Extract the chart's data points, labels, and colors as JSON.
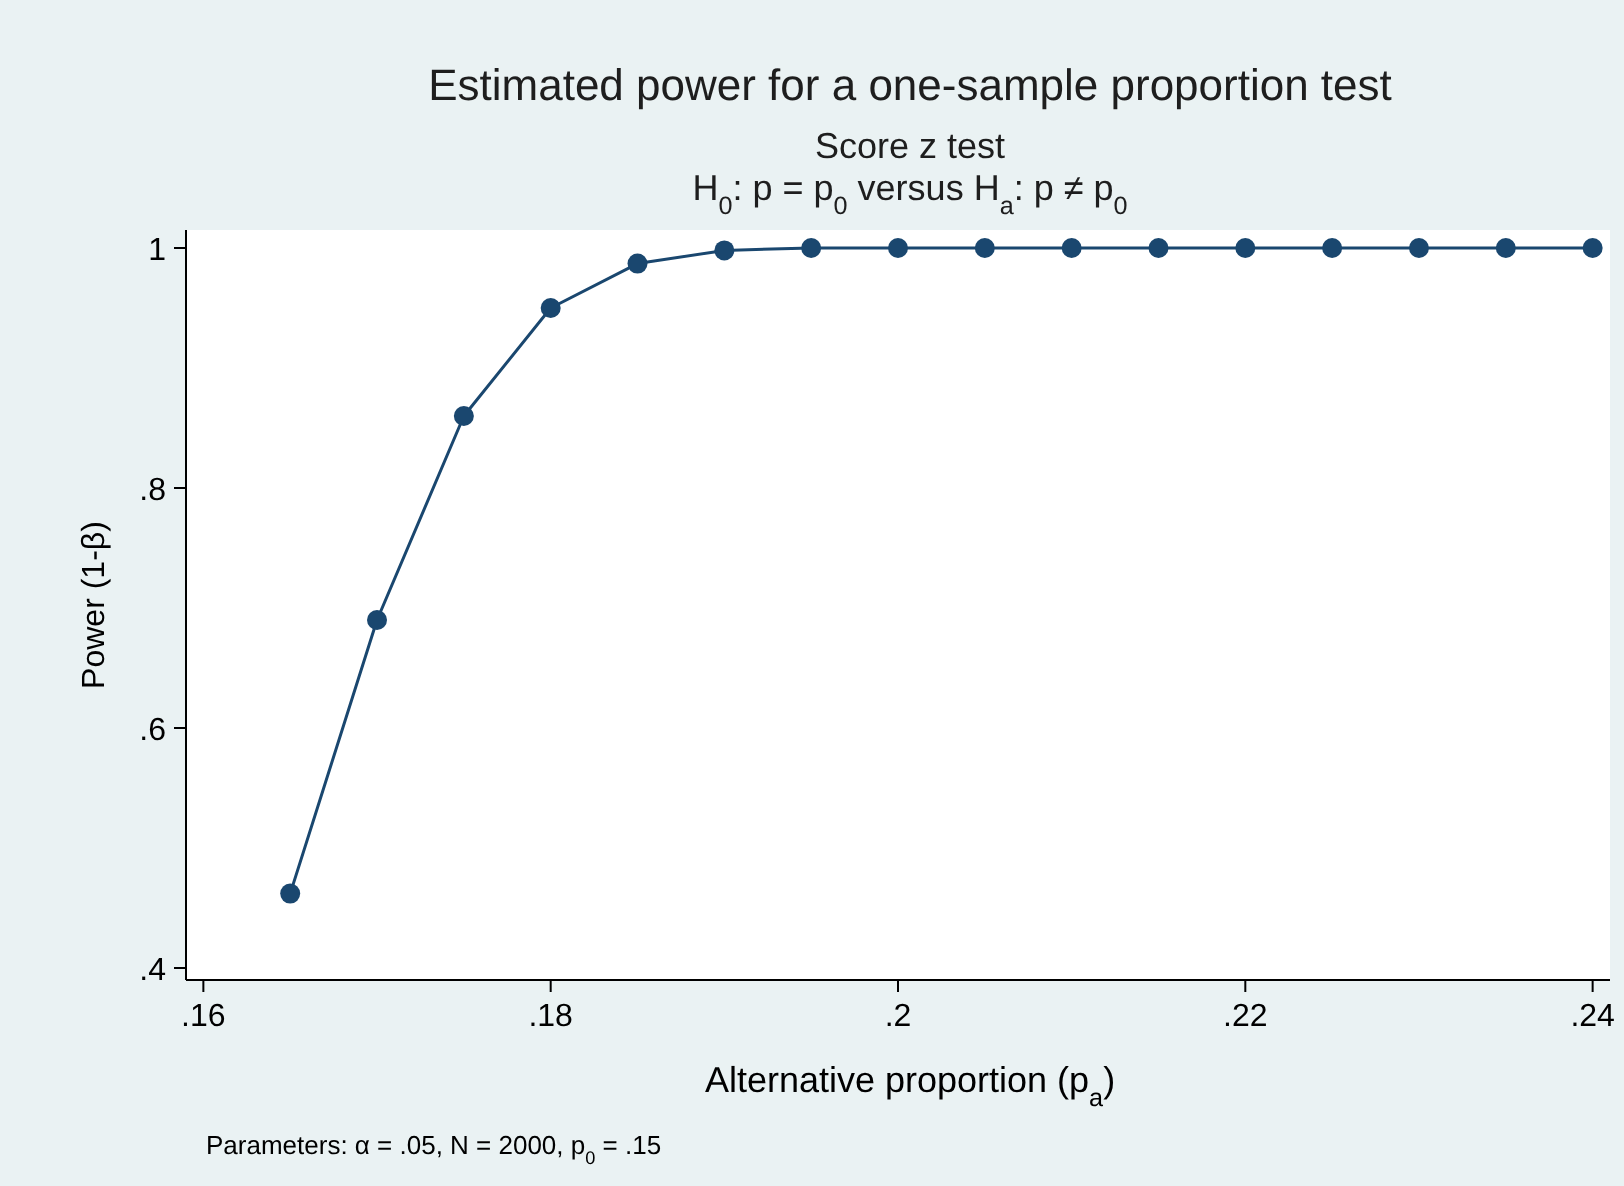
{
  "chart_data": {
    "type": "line",
    "title": "Estimated power for a one-sample proportion test",
    "subtitle": "Score z test\nH$_{0}$: p = p$_{0}$  versus  H$_{a}$: p ≠ p$_{0}$",
    "xlabel": "Alternative proportion (p$_{a}$)",
    "ylabel": "Power (1-β)",
    "annotations": [
      "Parameters: α = .05, N = 2000, p$_{0}$ = .15"
    ],
    "x": [
      0.165,
      0.17,
      0.175,
      0.18,
      0.185,
      0.19,
      0.195,
      0.2,
      0.205,
      0.21,
      0.215,
      0.22,
      0.225,
      0.23,
      0.235,
      0.24
    ],
    "series": [
      {
        "color": "#1a476f",
        "values": [
          0.462,
          0.69,
          0.86,
          0.95,
          0.987,
          0.998,
          1,
          1,
          1,
          1,
          1,
          1,
          1,
          1,
          1,
          1
        ]
      }
    ],
    "xlim": [
      0.159,
      0.241
    ],
    "ylim": [
      0.39,
      1.015
    ],
    "xticks": [
      {
        "value": 0.16,
        "label": ".16"
      },
      {
        "value": 0.18,
        "label": ".18"
      },
      {
        "value": 0.2,
        "label": ".2"
      },
      {
        "value": 0.22,
        "label": ".22"
      },
      {
        "value": 0.24,
        "label": ".24"
      }
    ],
    "yticks": [
      {
        "value": 0.4,
        "label": ".4"
      },
      {
        "value": 0.6,
        "label": ".6"
      },
      {
        "value": 0.8,
        "label": ".8"
      },
      {
        "value": 1,
        "label": "1"
      }
    ],
    "grid": false,
    "marker": "circle",
    "line_style": "solid"
  }
}
